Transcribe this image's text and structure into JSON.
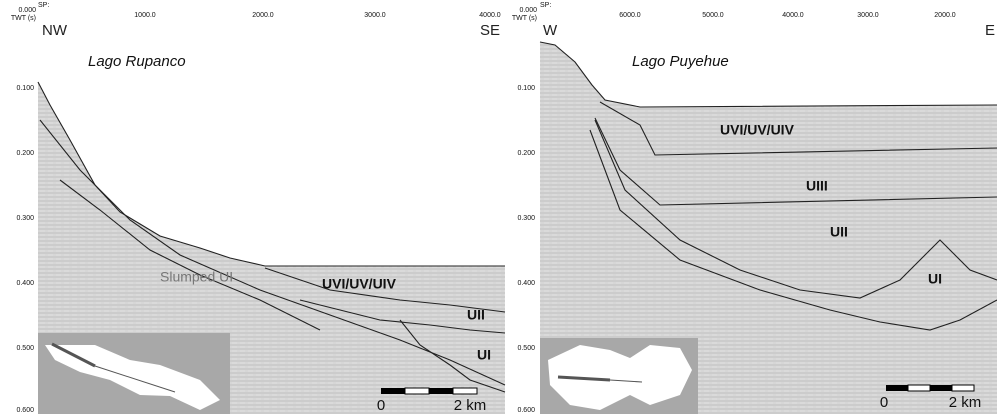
{
  "panels": [
    {
      "sp_label": "SP:",
      "sp_ticks": [
        "1000.0",
        "2000.0",
        "3000.0",
        "4000.0"
      ],
      "twt_zero": "0.000",
      "twt_title": "TWT (s)",
      "twt_ticks": [
        "0.100",
        "0.200",
        "0.300",
        "0.400",
        "0.500",
        "0.600"
      ],
      "directions": [
        "NW",
        "SE"
      ],
      "lake": "Lago Rupanco",
      "units": [
        "Slumped UI",
        "UVI/UV/UIV",
        "UII",
        "UI"
      ],
      "scale": [
        "0",
        "2 km"
      ]
    },
    {
      "sp_label": "SP:",
      "sp_ticks": [
        "6000.0",
        "5000.0",
        "4000.0",
        "3000.0",
        "2000.0"
      ],
      "twt_zero": "0.000",
      "twt_title": "TWT (s)",
      "twt_ticks": [
        "0.100",
        "0.200",
        "0.300",
        "0.400",
        "0.500",
        "0.600"
      ],
      "directions": [
        "W",
        "E"
      ],
      "lake": "Lago Puyehue",
      "units": [
        "UVI/UV/UIV",
        "UIII",
        "UII",
        "UI"
      ],
      "scale": [
        "0",
        "2 km"
      ]
    }
  ]
}
